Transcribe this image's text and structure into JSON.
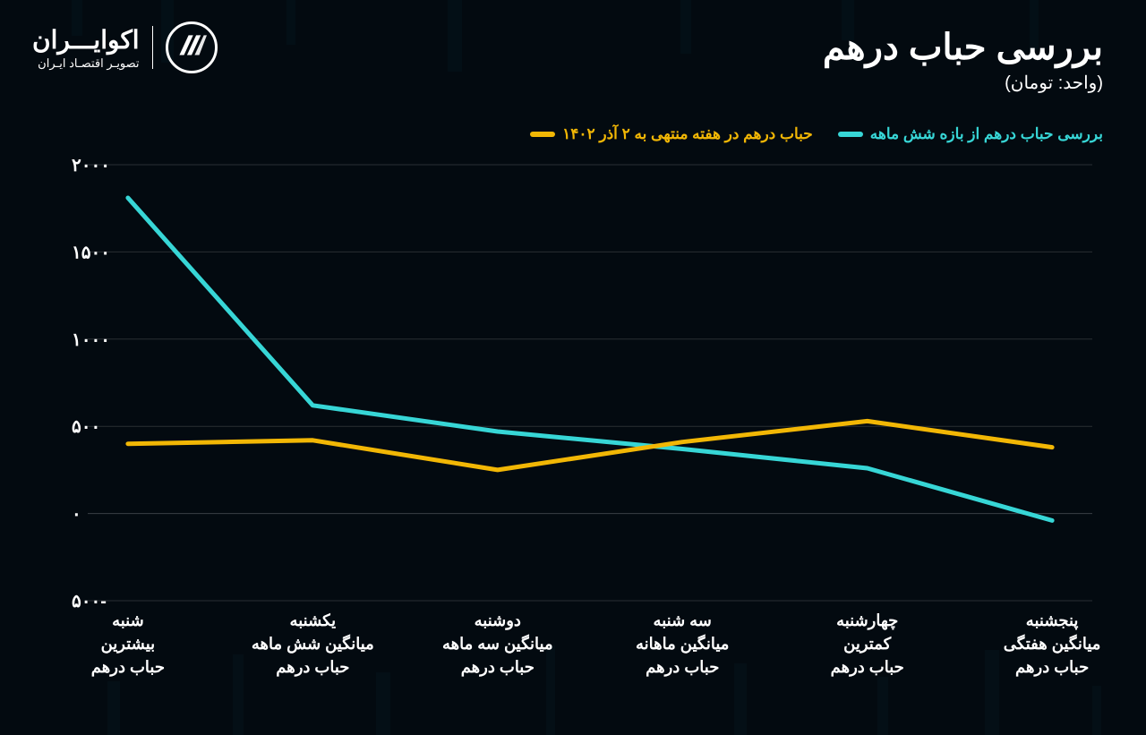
{
  "brand": {
    "title": "اکوایـــران",
    "subtitle": "تصویـر اقتصـاد ایـران"
  },
  "header": {
    "title": "بررسی  حباب درهم",
    "subtitle": "(واحد: تومان)"
  },
  "legend": {
    "series_a": {
      "label": "بررسی حباب درهم از بازه شش ماهه",
      "color": "#37d6d6"
    },
    "series_b": {
      "label": "حباب درهم در هفته منتهی  به ۲ آذر  ۱۴۰۲",
      "color": "#f2b705"
    }
  },
  "chart": {
    "type": "line",
    "background_color": "#030a10",
    "grid_color": "#2a2f33",
    "text_color": "#ffffff",
    "ylim": [
      -500,
      2000
    ],
    "ytick_step": 500,
    "y_ticks": [
      "-۵۰۰",
      "۰",
      "۵۰۰",
      "۱۰۰۰",
      "۱۵۰۰",
      "۲۰۰۰"
    ],
    "y_tick_values": [
      -500,
      0,
      500,
      1000,
      1500,
      2000
    ],
    "line_width": 5,
    "categories_count": 6,
    "categories": [
      {
        "line1": "شنبه",
        "line2": "بیشترین",
        "line3": "حباب درهم"
      },
      {
        "line1": "یکشنبه",
        "line2": "میانگین شش ماهه",
        "line3": "حباب درهم"
      },
      {
        "line1": "دوشنبه",
        "line2": "میانگین سه ماهه",
        "line3": "حباب درهم"
      },
      {
        "line1": "سه شنبه",
        "line2": "میانگین ماهانه",
        "line3": "حباب درهم"
      },
      {
        "line1": "چهارشنبه",
        "line2": "کمترین",
        "line3": "حباب درهم"
      },
      {
        "line1": "پنجشنبه",
        "line2": "میانگین هفتگی",
        "line3": "حباب درهم"
      }
    ],
    "series": [
      {
        "name": "six_month",
        "color": "#37d6d6",
        "values": [
          1810,
          620,
          470,
          370,
          260,
          -40
        ]
      },
      {
        "name": "week_ending",
        "color": "#f2b705",
        "values": [
          400,
          420,
          250,
          410,
          530,
          380
        ]
      }
    ]
  }
}
